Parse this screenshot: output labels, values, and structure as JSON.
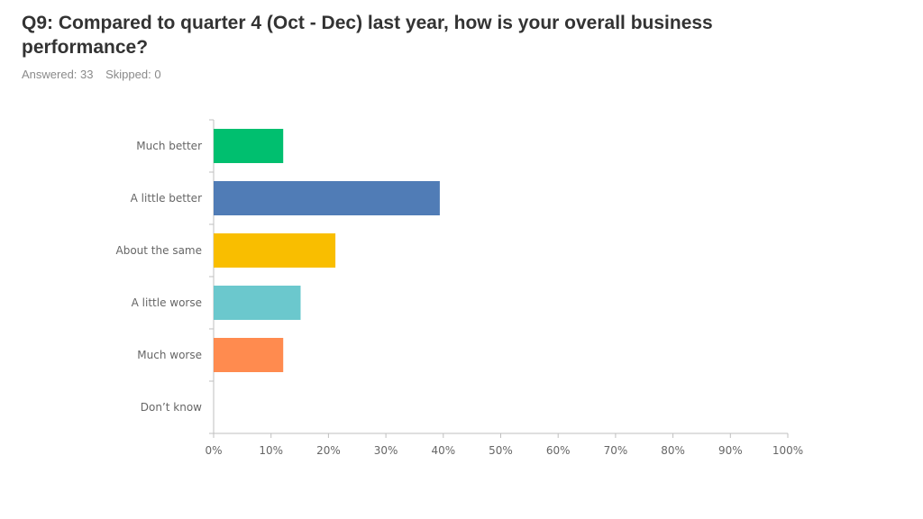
{
  "question": {
    "title": "Q9: Compared to quarter 4 (Oct - Dec) last year, how is your overall business performance?",
    "answered": "Answered: 33",
    "skipped": "Skipped: 0"
  },
  "chart_data": {
    "type": "bar",
    "orientation": "horizontal",
    "categories": [
      "Much better",
      "A little better",
      "About the same",
      "A little worse",
      "Much worse",
      "Don’t know"
    ],
    "values": [
      12.12,
      39.39,
      21.21,
      15.15,
      12.12,
      0
    ],
    "value_unit": "%",
    "xlim": [
      0,
      100
    ],
    "x_ticks": [
      "0%",
      "10%",
      "20%",
      "30%",
      "40%",
      "50%",
      "60%",
      "70%",
      "80%",
      "90%",
      "100%"
    ],
    "colors": [
      "#00bf6f",
      "#507cb6",
      "#f9be00",
      "#6bc8cd",
      "#ff8b4f",
      "#7d5cc6"
    ],
    "grid": false,
    "legend": "none",
    "title": "",
    "xlabel": "",
    "ylabel": ""
  }
}
